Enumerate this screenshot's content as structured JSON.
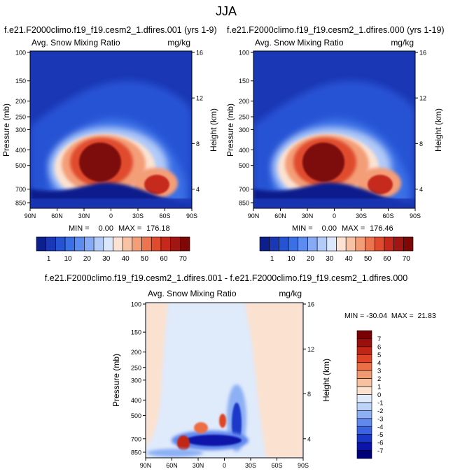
{
  "page": {
    "title": "JJA"
  },
  "colors": {
    "abs_scale": [
      "#0d1f8c",
      "#1a37b5",
      "#2553d4",
      "#3a6fe6",
      "#5d8cf0",
      "#86aaf5",
      "#b3cbf8",
      "#dbe8fb",
      "#fbe2d2",
      "#f8c3a4",
      "#f49e78",
      "#ec744e",
      "#e04b2d",
      "#c6291c",
      "#a11512",
      "#7d0807"
    ],
    "diff_scale": [
      "#00007a",
      "#0a14a8",
      "#1a37c8",
      "#3a62e2",
      "#6088ee",
      "#8db0f4",
      "#bdd2f8",
      "#dfeafb",
      "#fbe1cf",
      "#f7c0a0",
      "#f29870",
      "#ec6e45",
      "#de4425",
      "#c12516",
      "#9c0e0c",
      "#7a0205"
    ]
  },
  "chart_data": [
    {
      "type": "heatmap",
      "title": "f.e21.F2000climo.f19_f19.cesm2_1.dfires.001 (yrs 1-9)",
      "left_label": "Avg. Snow Mixing Ratio",
      "right_label": "mg/kg",
      "xlabel": "",
      "ylabel": "Pressure (mb)",
      "ylabel_right": "Height (km)",
      "x_ticks": [
        "90N",
        "60N",
        "30N",
        "0",
        "30S",
        "60S",
        "90S"
      ],
      "y_ticks": [
        "100",
        "150",
        "200",
        "250",
        "300",
        "400",
        "500",
        "700",
        "850"
      ],
      "y_ticks_right": [
        "16",
        "12",
        "8",
        "4"
      ],
      "stats": {
        "min_label": "MIN =",
        "min": "0.00",
        "max_label": "MAX =",
        "max": "176.18"
      },
      "colorbar_labels": [
        "1",
        "10",
        "20",
        "30",
        "40",
        "50",
        "60",
        "70"
      ]
    },
    {
      "type": "heatmap",
      "title": "f.e21.F2000climo.f19_f19.cesm2_1.dfires.000 (yrs 1-19)",
      "left_label": "Avg. Snow Mixing Ratio",
      "right_label": "mg/kg",
      "xlabel": "",
      "ylabel": "Pressure (mb)",
      "ylabel_right": "Height (km)",
      "x_ticks": [
        "90N",
        "60N",
        "30N",
        "0",
        "30S",
        "60S",
        "90S"
      ],
      "y_ticks": [
        "100",
        "150",
        "200",
        "250",
        "300",
        "400",
        "500",
        "700",
        "850"
      ],
      "y_ticks_right": [
        "16",
        "12",
        "8",
        "4"
      ],
      "stats": {
        "min_label": "MIN =",
        "min": "0.00",
        "max_label": "MAX =",
        "max": "176.46"
      },
      "colorbar_labels": [
        "1",
        "10",
        "20",
        "30",
        "40",
        "50",
        "60",
        "70"
      ]
    },
    {
      "type": "heatmap",
      "title": "f.e21.F2000climo.f19_f19.cesm2_1.dfires.001 - f.e21.F2000climo.f19_f19.cesm2_1.dfires.000",
      "left_label": "Avg. Snow Mixing Ratio",
      "right_label": "mg/kg",
      "xlabel": "",
      "ylabel": "Pressure (mb)",
      "ylabel_right": "Height (km)",
      "x_ticks": [
        "90N",
        "60N",
        "30N",
        "0",
        "30S",
        "60S",
        "90S"
      ],
      "y_ticks": [
        "100",
        "150",
        "200",
        "250",
        "300",
        "400",
        "500",
        "700",
        "850"
      ],
      "y_ticks_right": [
        "16",
        "12",
        "8",
        "4"
      ],
      "stats": {
        "text": "MIN = -30.04  MAX =  21.83"
      },
      "colorbar_labels": [
        "7",
        "6",
        "5",
        "4",
        "3",
        "2",
        "1",
        "0",
        "-1",
        "-2",
        "-3",
        "-4",
        "-5",
        "-6",
        "-7"
      ]
    }
  ]
}
